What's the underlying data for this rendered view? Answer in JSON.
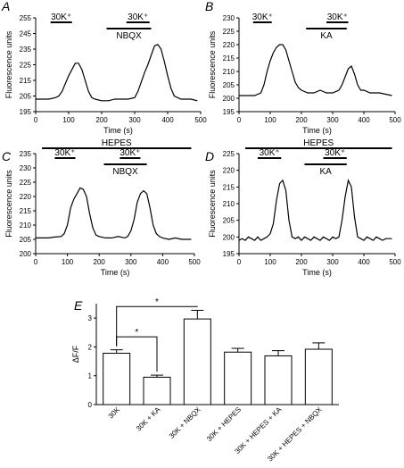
{
  "chart_data": [
    {
      "id": "A",
      "type": "line",
      "panel_label": "A",
      "xlabel": "Time (s)",
      "ylabel": "Fluorescence units",
      "xlim": [
        0,
        500
      ],
      "ylim": [
        195,
        255
      ],
      "xticks": [
        0,
        100,
        200,
        300,
        400,
        500
      ],
      "yticks": [
        195,
        205,
        215,
        225,
        235,
        245,
        255
      ],
      "series": [
        {
          "x": [
            0,
            20,
            40,
            60,
            70,
            80,
            90,
            100,
            110,
            120,
            130,
            140,
            150,
            160,
            170,
            180,
            200,
            220,
            240,
            260,
            280,
            300,
            310,
            320,
            330,
            340,
            350,
            360,
            370,
            380,
            390,
            400,
            410,
            420,
            440,
            470,
            490
          ],
          "y": [
            203,
            203,
            203,
            204,
            205,
            208,
            213,
            218,
            222,
            226,
            226,
            222,
            215,
            208,
            204,
            203,
            202,
            202,
            203,
            203,
            203,
            204,
            208,
            214,
            220,
            225,
            231,
            237,
            238,
            235,
            227,
            218,
            210,
            205,
            203,
            203,
            202
          ]
        }
      ],
      "annotations": [
        {
          "text": "30K⁺",
          "bar": [
            45,
            110
          ],
          "level": 2
        },
        {
          "text": "30K⁺",
          "bar": [
            275,
            345
          ],
          "level": 2
        },
        {
          "text": "NBQX",
          "bar": [
            215,
            350
          ],
          "level": 1
        }
      ]
    },
    {
      "id": "B",
      "type": "line",
      "panel_label": "B",
      "xlabel": "Time (s)",
      "ylabel": "Fluorescence units",
      "xlim": [
        0,
        500
      ],
      "ylim": [
        195,
        230
      ],
      "xticks": [
        0,
        100,
        200,
        300,
        400,
        500
      ],
      "yticks": [
        195,
        200,
        205,
        210,
        215,
        220,
        225,
        230
      ],
      "series": [
        {
          "x": [
            0,
            30,
            50,
            70,
            80,
            90,
            100,
            110,
            120,
            130,
            140,
            150,
            160,
            170,
            180,
            190,
            200,
            220,
            240,
            260,
            280,
            300,
            320,
            330,
            340,
            350,
            360,
            370,
            380,
            390,
            400,
            420,
            450,
            490
          ],
          "y": [
            201,
            201,
            201,
            202,
            205,
            210,
            214,
            217,
            219,
            220,
            220,
            218,
            214,
            210,
            206,
            204,
            203,
            202,
            202,
            203,
            202,
            202,
            203,
            205,
            208,
            211,
            212,
            209,
            205,
            203,
            203,
            202,
            202,
            201
          ]
        }
      ],
      "annotations": [
        {
          "text": "30K⁺",
          "bar": [
            45,
            105
          ],
          "level": 2
        },
        {
          "text": "30K⁺",
          "bar": [
            280,
            350
          ],
          "level": 2
        },
        {
          "text": "KA",
          "bar": [
            215,
            345
          ],
          "level": 1
        }
      ]
    },
    {
      "id": "C",
      "type": "line",
      "panel_label": "C",
      "xlabel": "Time (s)",
      "ylabel": "Fluorescence units",
      "xlim": [
        0,
        500
      ],
      "ylim": [
        200,
        235
      ],
      "xticks": [
        0,
        100,
        200,
        300,
        400,
        500
      ],
      "yticks": [
        200,
        205,
        210,
        215,
        220,
        225,
        230,
        235
      ],
      "series": [
        {
          "x": [
            0,
            20,
            40,
            60,
            80,
            90,
            100,
            110,
            120,
            130,
            140,
            150,
            160,
            170,
            180,
            190,
            200,
            220,
            240,
            260,
            280,
            290,
            300,
            310,
            320,
            330,
            340,
            350,
            360,
            370,
            380,
            390,
            400,
            420,
            440,
            460,
            480,
            490
          ],
          "y": [
            205.5,
            205.5,
            205.5,
            205.8,
            206,
            207,
            210,
            216,
            219,
            221,
            223,
            222.5,
            220,
            214,
            209,
            206.5,
            206,
            205.5,
            205.5,
            206,
            205.5,
            206,
            208,
            212,
            218,
            221,
            222,
            221,
            216,
            210,
            207,
            206,
            205.5,
            205,
            205.5,
            205,
            205,
            205
          ]
        }
      ],
      "annotations": [
        {
          "text": "HEPES",
          "bar": [
            20,
            490
          ],
          "level": 3
        },
        {
          "text": "30K⁺",
          "bar": [
            60,
            125
          ],
          "level": 2
        },
        {
          "text": "30K⁺",
          "bar": [
            265,
            330
          ],
          "level": 2
        },
        {
          "text": "NBQX",
          "bar": [
            215,
            350
          ],
          "level": 1
        }
      ]
    },
    {
      "id": "D",
      "type": "line",
      "panel_label": "D",
      "xlabel": "Time (s)",
      "ylabel": "Fluorescence units",
      "xlim": [
        0,
        500
      ],
      "ylim": [
        195,
        225
      ],
      "xticks": [
        0,
        100,
        200,
        300,
        400,
        500
      ],
      "yticks": [
        195,
        200,
        205,
        210,
        215,
        220,
        225
      ],
      "series": [
        {
          "x": [
            0,
            10,
            20,
            30,
            40,
            50,
            60,
            70,
            80,
            90,
            100,
            110,
            120,
            130,
            140,
            150,
            160,
            170,
            180,
            190,
            200,
            210,
            220,
            230,
            240,
            250,
            260,
            270,
            280,
            290,
            300,
            310,
            320,
            330,
            340,
            350,
            360,
            370,
            380,
            390,
            400,
            410,
            420,
            430,
            440,
            450,
            460,
            470,
            480,
            490
          ],
          "y": [
            199,
            199.5,
            199,
            200,
            199.5,
            199,
            200,
            199,
            199.5,
            200,
            201,
            204,
            211,
            216,
            217,
            214,
            205,
            200,
            199.5,
            200,
            199,
            200,
            199.5,
            199,
            200,
            199.5,
            199,
            200,
            199.5,
            199,
            200,
            199.5,
            200,
            205,
            212,
            217,
            215,
            206,
            200,
            199.5,
            199,
            200,
            199.5,
            199,
            200,
            199.5,
            199,
            199.5,
            199.5,
            199.5
          ]
        }
      ],
      "annotations": [
        {
          "text": "HEPES",
          "bar": [
            20,
            490
          ],
          "level": 3
        },
        {
          "text": "30K⁺",
          "bar": [
            60,
            135
          ],
          "level": 2
        },
        {
          "text": "30K⁺",
          "bar": [
            270,
            345
          ],
          "level": 2
        },
        {
          "text": "KA",
          "bar": [
            210,
            345
          ],
          "level": 1
        }
      ]
    },
    {
      "id": "E",
      "type": "bar",
      "panel_label": "E",
      "ylabel": "ΔF/F",
      "ylim": [
        0,
        3.5
      ],
      "yticks": [
        0,
        1,
        2,
        3
      ],
      "categories": [
        "30K",
        "30K + KA",
        "30K + NBQX",
        "30K + HEPES",
        "30K + HEPES + KA",
        "30K + HEPES + NBQX"
      ],
      "values": [
        1.78,
        0.95,
        2.97,
        1.82,
        1.69,
        1.92
      ],
      "errors": [
        0.12,
        0.07,
        0.3,
        0.13,
        0.18,
        0.22
      ],
      "significance": [
        {
          "from": 0,
          "to": 1,
          "label": "*"
        },
        {
          "from": 0,
          "to": 2,
          "label": "*"
        }
      ]
    }
  ]
}
